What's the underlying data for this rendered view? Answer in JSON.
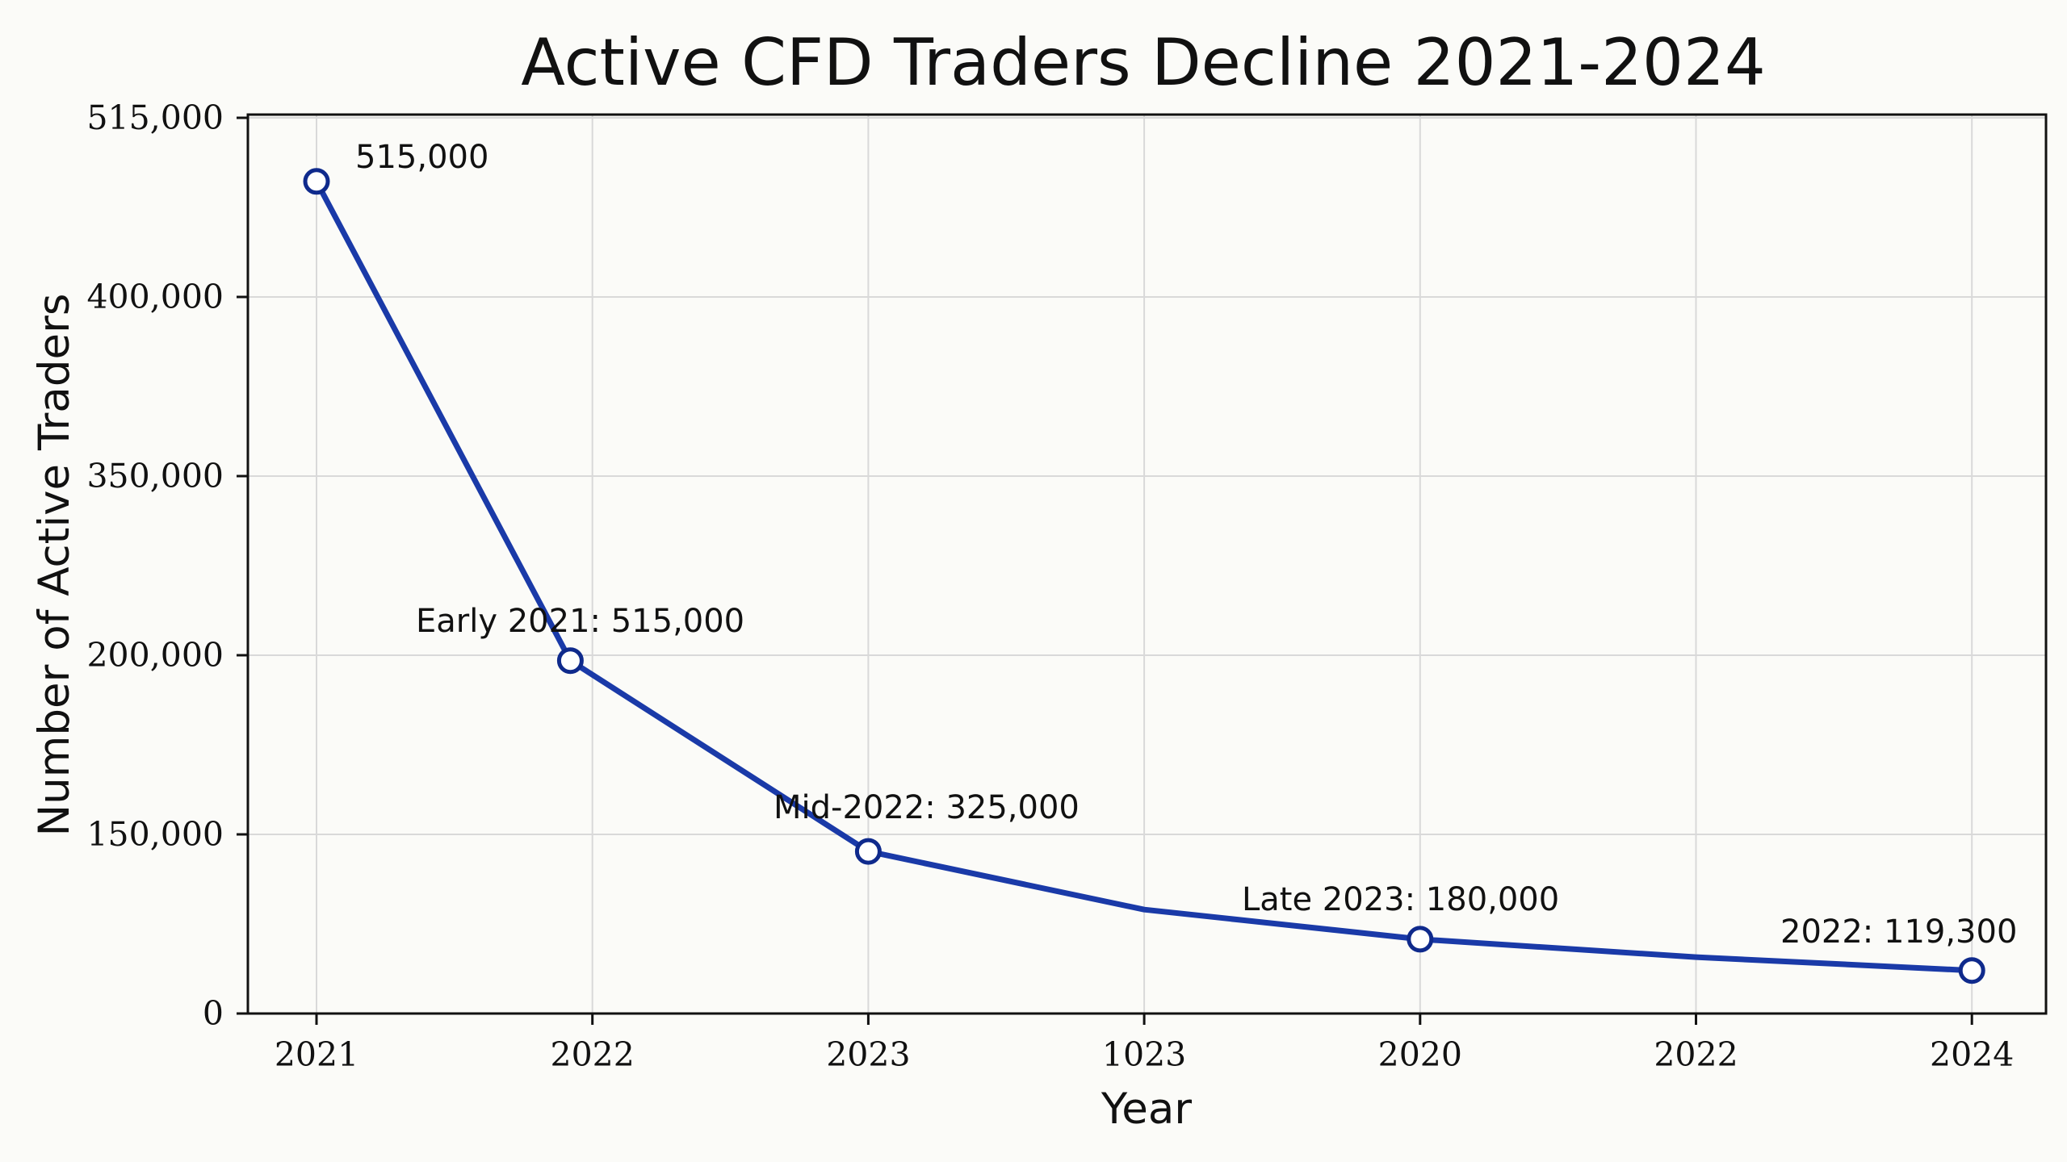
{
  "chart_data": {
    "type": "line",
    "title": "Active CFD Traders Decline 2021-2024",
    "xlabel": "Year",
    "ylabel": "Number of Active Traders",
    "grid": true,
    "legend": "none",
    "x_tick_labels": [
      "2021",
      "2022",
      "2023",
      "1023",
      "2020",
      "2022",
      "2024"
    ],
    "y_tick_labels": [
      "0",
      "150,000",
      "200,000",
      "350,000",
      "400,000",
      "515,000"
    ],
    "series": [
      {
        "color": "#1a3aa8",
        "x": [
          0,
          0.92,
          2,
          3,
          4,
          5,
          6
        ],
        "y": [
          0.929,
          0.394,
          0.181,
          0.116,
          0.083,
          0.063,
          0.048
        ],
        "markers": [
          true,
          true,
          true,
          false,
          true,
          false,
          true
        ]
      }
    ],
    "annotations": [
      "515,000",
      "Early 2021: 515,000",
      "Mid-2022: 325,000",
      "Late 2023: 180,000",
      "2022: 119,300"
    ]
  }
}
